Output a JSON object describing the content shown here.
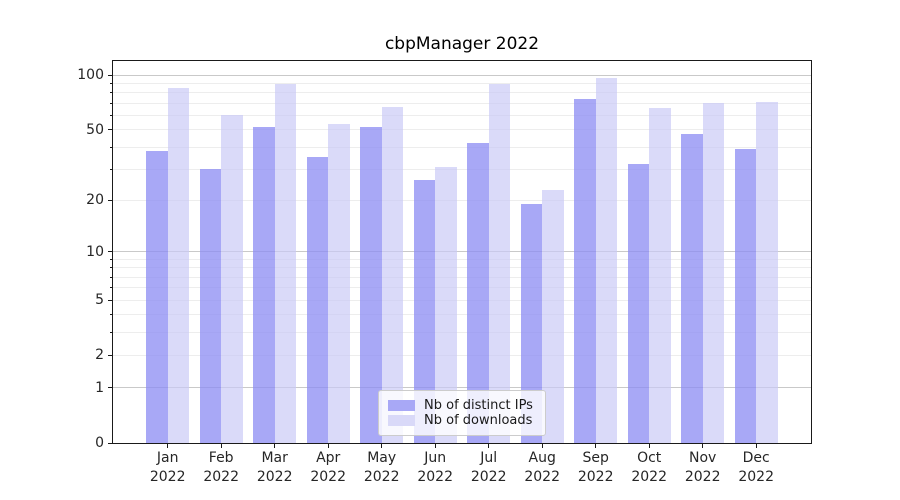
{
  "title": "cbpManager 2022",
  "legend": {
    "items": [
      {
        "label": "Nb of distinct IPs",
        "series": "ips"
      },
      {
        "label": "Nb of downloads",
        "series": "downloads"
      }
    ]
  },
  "colors": {
    "ips_bar": "rgba(140,140,243,0.76)",
    "downloads_bar": "rgba(200,200,246,0.68)",
    "ips_swatch": "#a8a8f6",
    "downloads_swatch": "#d9d9f8",
    "major_grid": "#c9c9c9",
    "minor_grid": "#ededed",
    "axis": "#1a1a1a",
    "text": "#262626"
  },
  "chart_data": {
    "type": "bar",
    "title": "cbpManager 2022",
    "categories": [
      "Jan 2022",
      "Feb 2022",
      "Mar 2022",
      "Apr 2022",
      "May 2022",
      "Jun 2022",
      "Jul 2022",
      "Aug 2022",
      "Sep 2022",
      "Oct 2022",
      "Nov 2022",
      "Dec 2022"
    ],
    "series": [
      {
        "name": "Nb of distinct IPs",
        "values": [
          38,
          30,
          52,
          35,
          52,
          26,
          42,
          19,
          74,
          32,
          47,
          39
        ]
      },
      {
        "name": "Nb of downloads",
        "values": [
          85,
          60,
          89,
          54,
          67,
          31,
          90,
          23,
          97,
          66,
          70,
          71
        ]
      }
    ],
    "yscale": "log1p",
    "ylim": [
      0,
      115
    ],
    "yticks": [
      0,
      1,
      2,
      5,
      10,
      20,
      50,
      100
    ],
    "major_gridlines": [
      1,
      10,
      100
    ],
    "minor_gridlines": [
      3,
      4,
      6,
      7,
      8,
      9,
      30,
      40,
      60,
      70,
      80,
      90
    ],
    "grid": "horizontal",
    "legend_position": "lower center"
  }
}
